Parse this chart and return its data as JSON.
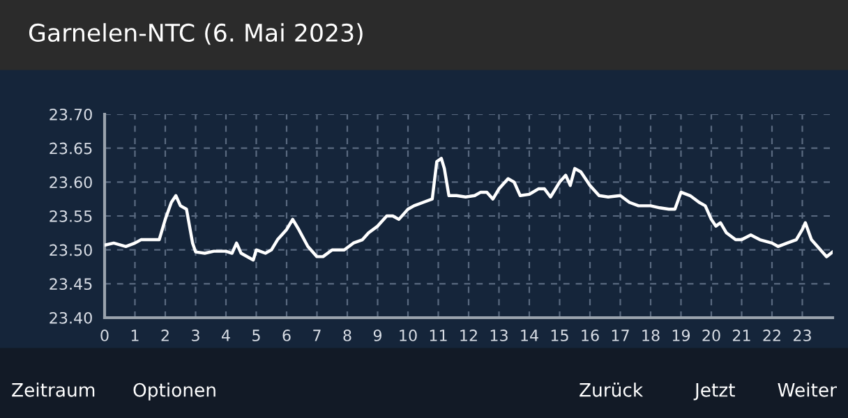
{
  "chart_data": {
    "type": "line",
    "title": "Garnelen-NTC (6. Mai 2023)",
    "x": [
      0,
      0.3,
      0.7,
      1,
      1.2,
      1.5,
      1.8,
      2.0,
      2.2,
      2.35,
      2.5,
      2.7,
      2.9,
      3.0,
      3.3,
      3.6,
      4.0,
      4.2,
      4.35,
      4.5,
      4.9,
      5.0,
      5.3,
      5.5,
      5.7,
      6.0,
      6.2,
      6.4,
      6.7,
      7.0,
      7.2,
      7.5,
      7.9,
      8.2,
      8.5,
      8.7,
      9.0,
      9.3,
      9.5,
      9.7,
      9.9,
      10.0,
      10.2,
      10.5,
      10.8,
      10.95,
      11.1,
      11.2,
      11.35,
      11.6,
      11.9,
      12.2,
      12.4,
      12.6,
      12.8,
      13.0,
      13.3,
      13.5,
      13.7,
      14.0,
      14.3,
      14.5,
      14.7,
      15.0,
      15.2,
      15.35,
      15.5,
      15.7,
      16.0,
      16.3,
      16.6,
      17.0,
      17.3,
      17.6,
      18.0,
      18.3,
      18.6,
      18.8,
      19.0,
      19.3,
      19.6,
      19.8,
      20.0,
      20.15,
      20.3,
      20.5,
      20.8,
      21.0,
      21.3,
      21.6,
      22.0,
      22.2,
      22.5,
      22.8,
      23.0,
      23.1,
      23.3,
      23.6,
      23.8,
      24.0
    ],
    "series": [
      {
        "color": "#ffffff",
        "values": [
          23.507,
          23.51,
          23.505,
          23.51,
          23.515,
          23.515,
          23.515,
          23.545,
          23.57,
          23.58,
          23.565,
          23.56,
          23.51,
          23.497,
          23.495,
          23.498,
          23.498,
          23.495,
          23.51,
          23.495,
          23.485,
          23.5,
          23.495,
          23.5,
          23.515,
          23.53,
          23.545,
          23.53,
          23.505,
          23.49,
          23.49,
          23.5,
          23.5,
          23.51,
          23.515,
          23.525,
          23.535,
          23.55,
          23.55,
          23.545,
          23.555,
          23.56,
          23.565,
          23.57,
          23.575,
          23.63,
          23.635,
          23.62,
          23.58,
          23.58,
          23.578,
          23.58,
          23.585,
          23.585,
          23.575,
          23.59,
          23.605,
          23.6,
          23.58,
          23.582,
          23.59,
          23.59,
          23.578,
          23.6,
          23.61,
          23.595,
          23.62,
          23.615,
          23.595,
          23.58,
          23.578,
          23.58,
          23.57,
          23.565,
          23.565,
          23.562,
          23.56,
          23.56,
          23.585,
          23.58,
          23.57,
          23.565,
          23.545,
          23.535,
          23.54,
          23.525,
          23.515,
          23.515,
          23.522,
          23.515,
          23.51,
          23.505,
          23.51,
          23.515,
          23.53,
          23.54,
          23.515,
          23.5,
          23.49,
          23.497
        ]
      }
    ],
    "xlim": [
      0,
      24
    ],
    "xticks": [
      0,
      1,
      2,
      3,
      4,
      5,
      6,
      7,
      8,
      9,
      10,
      11,
      12,
      13,
      14,
      15,
      16,
      17,
      18,
      19,
      20,
      21,
      22,
      23
    ],
    "ylim": [
      23.4,
      23.7
    ],
    "yticks": [
      {
        "value": 23.4,
        "label": "23.40"
      },
      {
        "value": 23.45,
        "label": "23.45"
      },
      {
        "value": 23.5,
        "label": "23.50"
      },
      {
        "value": 23.55,
        "label": "23.55"
      },
      {
        "value": 23.6,
        "label": "23.60"
      },
      {
        "value": 23.65,
        "label": "23.65"
      },
      {
        "value": 23.7,
        "label": "23.70"
      }
    ],
    "grid": true,
    "line_style": "solid",
    "marker": "none",
    "annotations": [
      "Zeitraum",
      "Optionen",
      "Zurück",
      "Jetzt",
      "Weiter"
    ]
  }
}
